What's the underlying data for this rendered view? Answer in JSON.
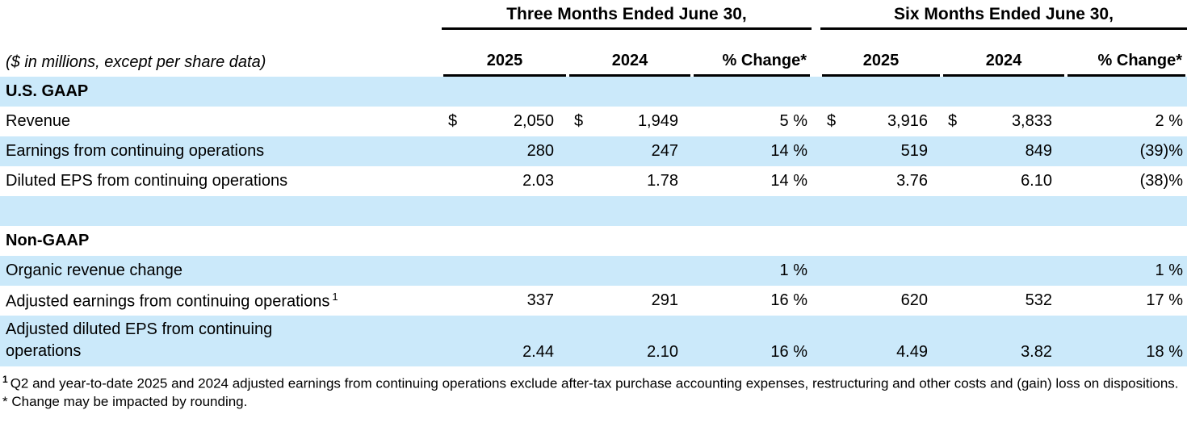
{
  "meta": {
    "note": "($ in millions, except per share data)"
  },
  "colors": {
    "row_highlight": "#cbe9fa",
    "rule": "#000000"
  },
  "header": {
    "group1": {
      "title": "Three Months Ended June 30,",
      "cols": [
        "2025",
        "2024",
        "% Change*"
      ]
    },
    "group2": {
      "title": "Six Months Ended June 30,",
      "cols": [
        "2025",
        "2024",
        "% Change*"
      ]
    }
  },
  "rows": [
    {
      "type": "section",
      "label": "U.S. GAAP"
    },
    {
      "type": "data",
      "label": "Revenue",
      "d1": "$",
      "v1": "2,050",
      "d2": "$",
      "v2": "1,949",
      "c1": "5 %",
      "d3": "$",
      "v3": "3,916",
      "d4": "$",
      "v4": "3,833",
      "c2": "2 %"
    },
    {
      "type": "data",
      "label": "Earnings from continuing operations",
      "v1": "280",
      "v2": "247",
      "c1": "14 %",
      "v3": "519",
      "v4": "849",
      "c2": "(39)%"
    },
    {
      "type": "data",
      "label": "Diluted EPS from continuing operations",
      "v1": "2.03",
      "v2": "1.78",
      "c1": "14 %",
      "v3": "3.76",
      "v4": "6.10",
      "c2": "(38)%"
    },
    {
      "type": "spacer",
      "label": ""
    },
    {
      "type": "section",
      "label": "Non-GAAP"
    },
    {
      "type": "data",
      "label": "Organic revenue change",
      "c1": "1 %",
      "c2": "1 %"
    },
    {
      "type": "data",
      "label": "Adjusted earnings from continuing operations",
      "sup": "1",
      "v1": "337",
      "v2": "291",
      "c1": "16 %",
      "v3": "620",
      "v4": "532",
      "c2": "17 %"
    },
    {
      "type": "data",
      "label": "Adjusted diluted EPS from continuing operations",
      "v1": "2.44",
      "v2": "2.10",
      "c1": "16 %",
      "v3": "4.49",
      "v4": "3.82",
      "c2": "18 %"
    }
  ],
  "footnotes": [
    {
      "sup": "1",
      "text": "Q2 and year-to-date 2025 and 2024 adjusted earnings from continuing operations exclude after-tax purchase accounting expenses, restructuring and other costs and (gain) loss on dispositions."
    },
    {
      "sup": "",
      "text": "* Change may be impacted by rounding."
    }
  ]
}
